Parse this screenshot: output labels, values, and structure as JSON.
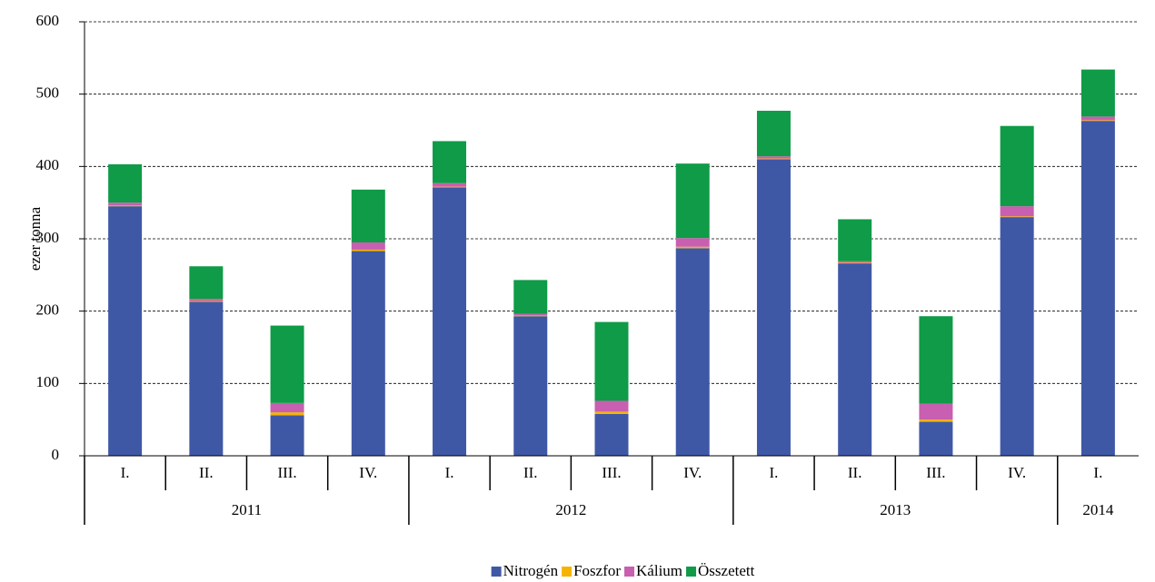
{
  "chart_data": {
    "type": "stacked_bar",
    "y_axis_label": "ezer tonna",
    "groups": [
      {
        "label": "2011",
        "categories": [
          "I.",
          "II.",
          "III.",
          "IV."
        ]
      },
      {
        "label": "2012",
        "categories": [
          "I.",
          "II.",
          "III.",
          "IV."
        ]
      },
      {
        "label": "2013",
        "categories": [
          "I.",
          "II.",
          "III.",
          "IV."
        ]
      },
      {
        "label": "2014",
        "categories": [
          "I."
        ]
      }
    ],
    "series": [
      {
        "name": "Nitrogén",
        "color": "#3f58a6",
        "values": [
          345,
          213,
          56,
          283,
          371,
          193,
          58,
          287,
          410,
          266,
          47,
          330,
          463
        ]
      },
      {
        "name": "Foszfor",
        "color": "#f5b400",
        "values": [
          1,
          1,
          4,
          2,
          1,
          1,
          3,
          2,
          1,
          1,
          3,
          1,
          1
        ]
      },
      {
        "name": "Kálium",
        "color": "#c85fb0",
        "values": [
          4,
          3,
          13,
          10,
          5,
          2,
          15,
          12,
          3,
          2,
          22,
          14,
          5
        ]
      },
      {
        "name": "Összetett",
        "color": "#0f9b47",
        "values": [
          53,
          45,
          107,
          73,
          58,
          47,
          109,
          103,
          63,
          58,
          121,
          111,
          65
        ]
      }
    ],
    "ylim": [
      0,
      600
    ],
    "yticks": [
      0,
      100,
      200,
      300,
      400,
      500,
      600
    ],
    "grid": true,
    "legend": "bottom"
  }
}
